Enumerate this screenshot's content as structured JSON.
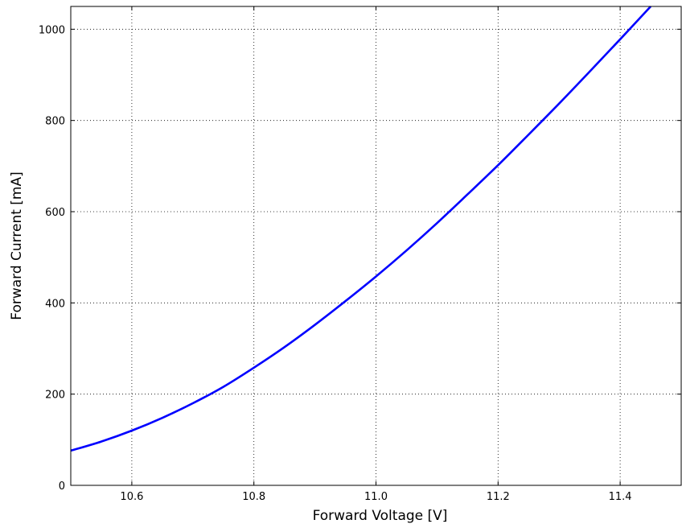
{
  "chart_data": {
    "type": "line",
    "xlabel": "Forward Voltage [V]",
    "ylabel": "Forward Current [mA]",
    "xlim": [
      10.5,
      11.5
    ],
    "ylim": [
      0,
      1050
    ],
    "grid": true,
    "xticks": [
      10.6,
      10.8,
      11.0,
      11.2,
      11.4
    ],
    "xtick_labels": [
      "10.6",
      "10.8",
      "11.0",
      "11.2",
      "11.4"
    ],
    "yticks": [
      0,
      200,
      400,
      600,
      800,
      1000
    ],
    "ytick_labels": [
      "0",
      "200",
      "400",
      "600",
      "800",
      "1000"
    ],
    "series": [
      {
        "color": "#0000ff",
        "x": [
          10.5,
          10.55,
          10.6,
          10.65,
          10.7,
          10.75,
          10.8,
          10.85,
          10.9,
          10.95,
          11.0,
          11.05,
          11.1,
          11.15,
          11.2,
          11.25,
          11.3,
          11.35,
          11.4,
          11.45
        ],
        "y": [
          76,
          96,
          120,
          148,
          180,
          216,
          258,
          303,
          352,
          404,
          458,
          515,
          575,
          638,
          702,
          769,
          837,
          907,
          978,
          1050
        ]
      }
    ]
  }
}
